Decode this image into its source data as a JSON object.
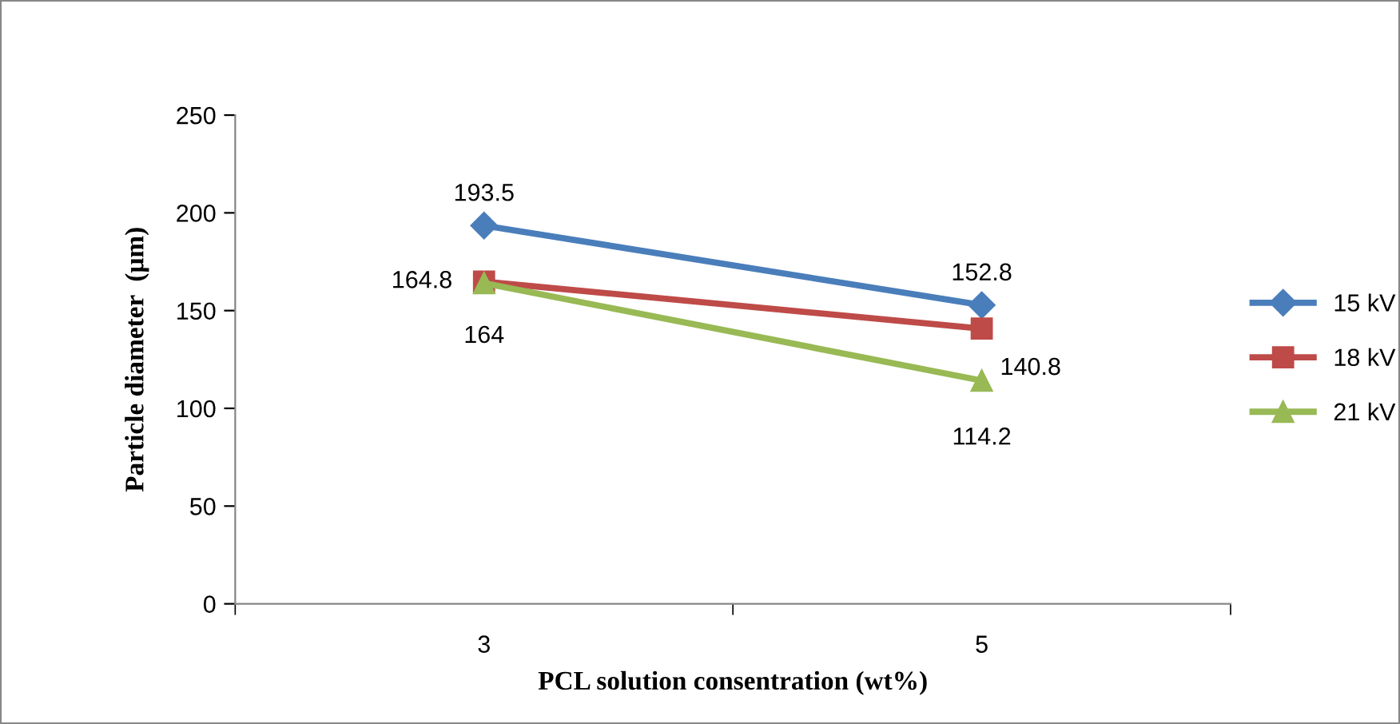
{
  "chart_data": {
    "type": "line",
    "xlabel": "PCL solution consentration (wt%)",
    "ylabel": "Particle diameter  (μm)",
    "categories": [
      "3",
      "5"
    ],
    "series": [
      {
        "name": "15 kV",
        "color": "#4a7ebb",
        "marker": "diamond",
        "values": [
          193.5,
          152.8
        ]
      },
      {
        "name": "18 kV",
        "color": "#be4b48",
        "marker": "square",
        "values": [
          164.8,
          140.8
        ]
      },
      {
        "name": "21 kV",
        "color": "#98b954",
        "marker": "triangle",
        "values": [
          164,
          114.2
        ]
      }
    ],
    "ylim": [
      0,
      250
    ],
    "yticks": [
      0,
      50,
      100,
      150,
      200,
      250
    ],
    "grid": false,
    "legend": "right",
    "data_labels": true,
    "line_style": "solid"
  }
}
